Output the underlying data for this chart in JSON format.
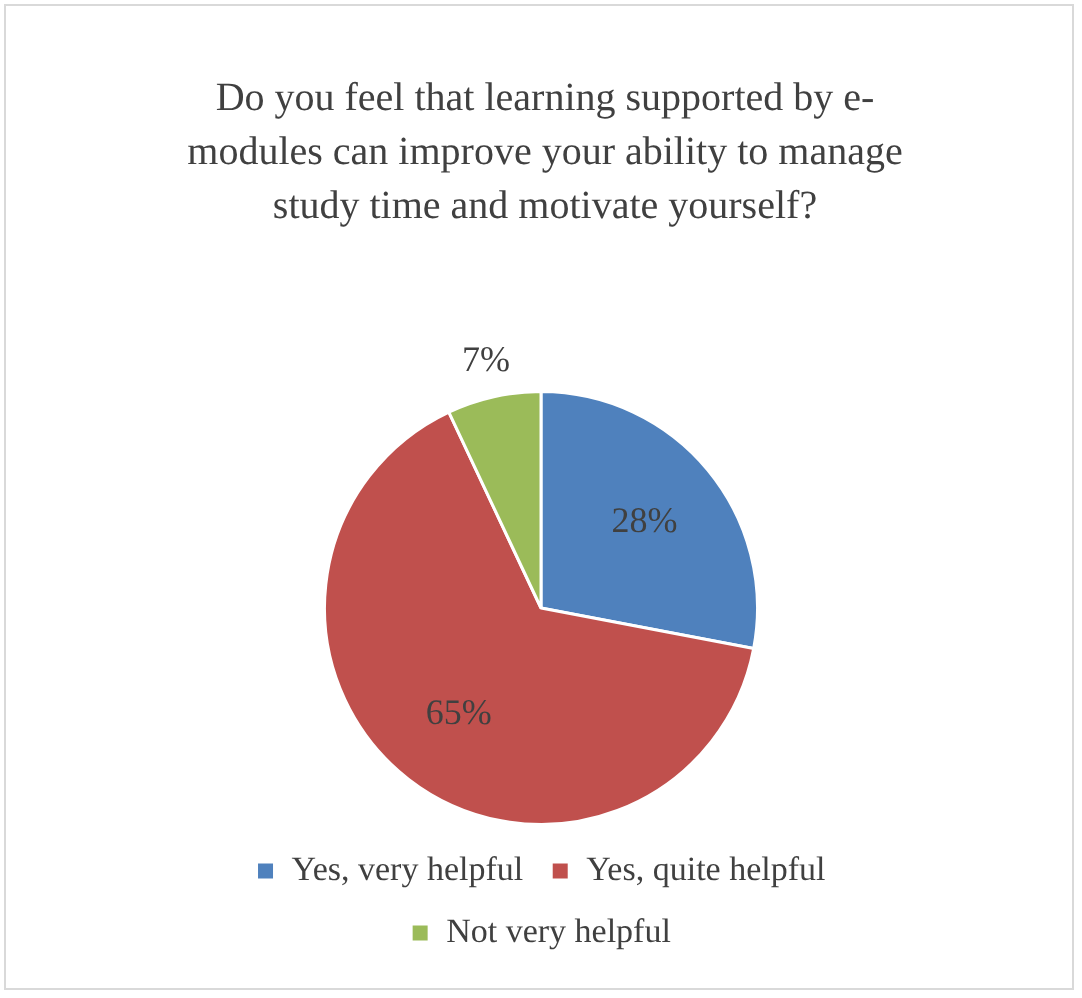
{
  "chart_data": {
    "type": "pie",
    "title": "Do you feel that learning supported by e-modules can improve your ability to manage study time and motivate yourself?",
    "categories": [
      "Yes, very helpful",
      "Yes, quite helpful",
      "Not very helpful"
    ],
    "values": [
      28,
      65,
      7
    ],
    "colors": [
      "#4f81bd",
      "#c0504d",
      "#9bbb59"
    ],
    "value_labels": [
      "28%",
      "65%",
      "7%"
    ],
    "legend": "bottom"
  }
}
